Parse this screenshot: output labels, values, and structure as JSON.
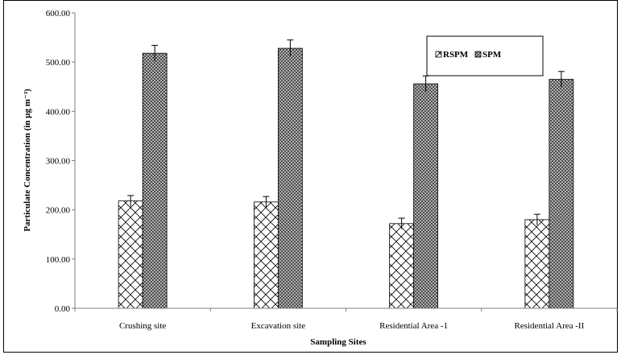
{
  "chart_data": {
    "type": "bar",
    "xlabel": "Sampling Sites",
    "ylabel": "Particulate Concentration (in µg m⁻³)",
    "ylim": [
      0,
      600
    ],
    "yticks": [
      "0.00",
      "100.00",
      "200.00",
      "300.00",
      "400.00",
      "500.00",
      "600.00"
    ],
    "categories": [
      "Crushing site",
      "Excavation site",
      "Residential Area -1",
      "Residential Area -II"
    ],
    "series": [
      {
        "name": "RSPM",
        "values": [
          218,
          216,
          172,
          180
        ],
        "errors": [
          11,
          11,
          11,
          11
        ],
        "pattern": "diagonal-hatch"
      },
      {
        "name": "SPM",
        "values": [
          518,
          528,
          456,
          465
        ],
        "errors": [
          16,
          17,
          16,
          16
        ],
        "pattern": "crosshatch-dark"
      }
    ],
    "grid": false,
    "legend_position": "top-right",
    "colors": {
      "rspm_fill": "#ffffff",
      "spm_fill": "#555555",
      "axis": "#7f7f7f",
      "frame": "#000000"
    }
  }
}
